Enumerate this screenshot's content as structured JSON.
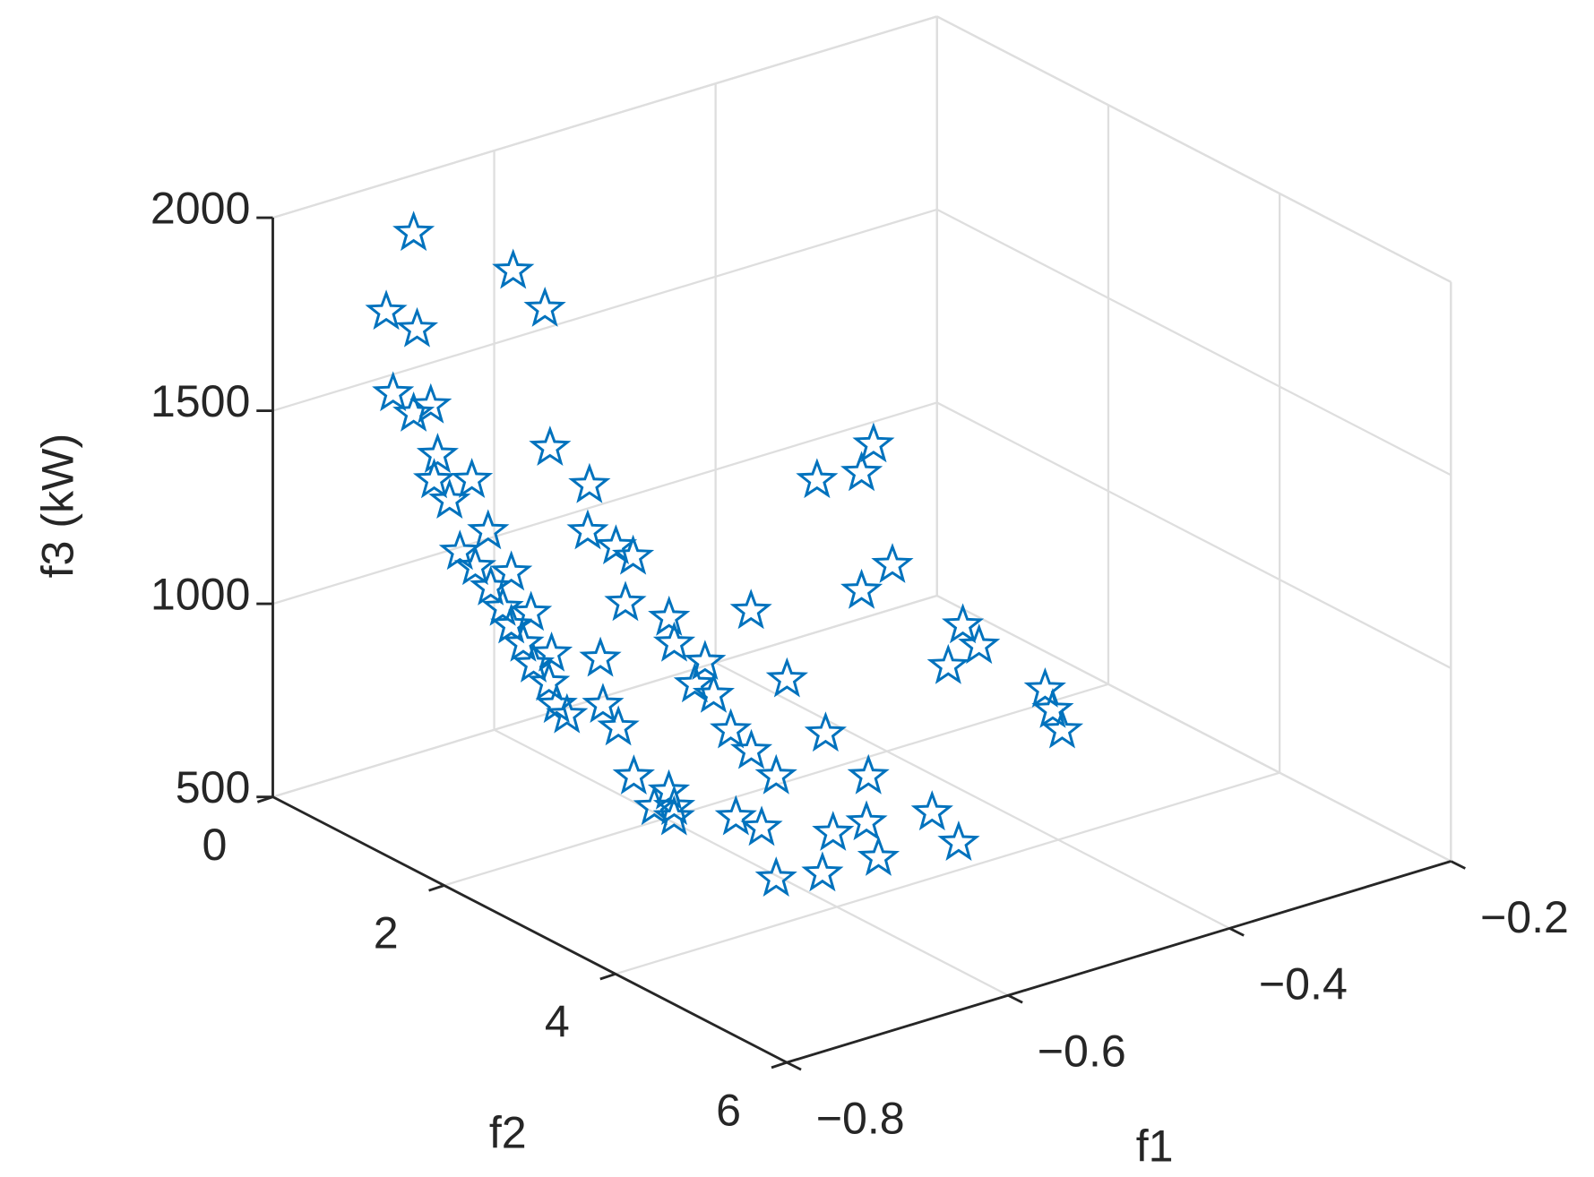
{
  "chart_data": {
    "type": "scatter3d",
    "xlabel": "f1",
    "ylabel": "f2",
    "zlabel": "f3 (kW)",
    "color": "#0072bd",
    "marker": "star",
    "grid": true,
    "xlim": [
      -0.8,
      -0.2
    ],
    "xticks": [
      {
        "value": -0.8,
        "label": "−0.8"
      },
      {
        "value": -0.6,
        "label": "−0.6"
      },
      {
        "value": -0.4,
        "label": "−0.4"
      },
      {
        "value": -0.2,
        "label": "−0.2"
      }
    ],
    "ylim": [
      0,
      6
    ],
    "yticks": [
      0,
      2,
      4,
      6
    ],
    "zlim": [
      500,
      2000
    ],
    "zticks": [
      500,
      1000,
      1500,
      2000
    ],
    "x": [
      -0.72,
      -0.72,
      -0.72,
      -0.72,
      -0.72,
      -0.72,
      -0.72,
      -0.72,
      -0.72,
      -0.72,
      -0.72,
      -0.72,
      -0.72,
      -0.72,
      -0.72,
      -0.72,
      -0.72,
      -0.72,
      -0.72,
      -0.72,
      -0.72,
      -0.72,
      -0.72,
      -0.72,
      -0.72,
      -0.72,
      -0.72,
      -0.72,
      -0.72,
      -0.72,
      -0.72,
      -0.62,
      -0.62,
      -0.62,
      -0.62,
      -0.62,
      -0.62,
      -0.62,
      -0.62,
      -0.62,
      -0.62,
      -0.62,
      -0.62,
      -0.62,
      -0.62,
      -0.62,
      -0.62,
      -0.62,
      -0.62,
      -0.62,
      -0.62,
      -0.62,
      -0.45,
      -0.45,
      -0.45,
      -0.45,
      -0.45,
      -0.45,
      -0.45,
      -0.45,
      -0.45,
      -0.55,
      -0.55,
      -0.55,
      -0.5,
      -0.5,
      -0.35,
      -0.35,
      -0.35,
      -0.35,
      -0.35,
      -0.35
    ],
    "y": [
      0.61,
      0.29,
      0.65,
      0.37,
      0.61,
      0.81,
      0.89,
      0.85,
      1.03,
      1.15,
      1.33,
      1.51,
      1.65,
      1.75,
      1.89,
      2.01,
      2.19,
      2.28,
      2.4,
      1.29,
      1.48,
      1.75,
      1.98,
      2.22,
      2.82,
      3.0,
      2.79,
      3.18,
      3.59,
      3.65,
      3.42,
      0.48,
      0.85,
      0.91,
      1.37,
      1.35,
      1.68,
      1.88,
      1.79,
      2.3,
      2.36,
      2.72,
      2.6,
      2.82,
      3.02,
      3.26,
      3.55,
      3.38,
      3.08,
      3.55,
      2.36,
      4.09,
      1.06,
      1.48,
      1.93,
      2.43,
      1.83,
      2.35,
      2.49,
      2.71,
      2.35,
      3.31,
      3.7,
      3.84,
      4.13,
      3.82,
      2.24,
      2.43,
      2.07,
      3.2,
      3.4,
      3.29
    ],
    "z": [
      1961,
      1720,
      1716,
      1518,
      1493,
      1537,
      1418,
      1348,
      1316,
      1197,
      1178,
      1146,
      1109,
      1075,
      1044,
      1004,
      977,
      930,
      917,
      1399,
      1288,
      1212,
      1134,
      1056,
      992,
      954,
      1108,
      848,
      856,
      796,
      796,
      1761,
      1705,
      1352,
      1308,
      1186,
      1185,
      1181,
      1051,
      1071,
      1011,
      1005,
      933,
      931,
      862,
      836,
      804,
      651,
      644,
      539,
      588,
      614,
      799,
      670,
      581,
      528,
      1226,
      1304,
      1394,
      1107,
      999,
      569,
      641,
      565,
      594,
      637,
      810,
      779,
      685,
      754,
      671,
      711
    ]
  }
}
